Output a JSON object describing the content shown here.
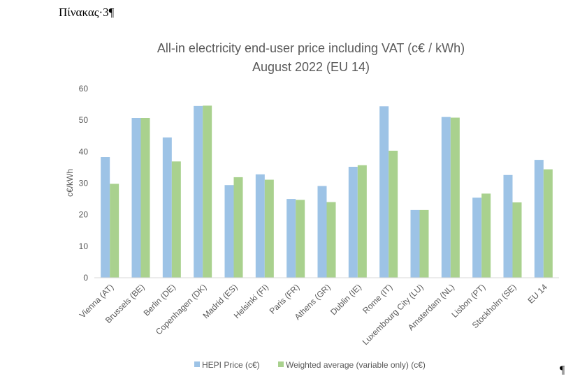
{
  "document": {
    "caption": "Πίνακας·3¶",
    "pilcrow": "¶"
  },
  "chart_data": {
    "type": "bar",
    "title": "All-in electricity end-user price including VAT (c€ / kWh)",
    "subtitle": "August 2022 (EU 14)",
    "xlabel": "",
    "ylabel": "c€/kWh",
    "ylim": [
      0,
      60
    ],
    "yticks": [
      0,
      10,
      20,
      30,
      40,
      50,
      60
    ],
    "grid": false,
    "legend_position": "bottom",
    "categories": [
      "Vienna (AT)",
      "Brussels (BE)",
      "Berlin (DE)",
      "Copenhagen (DK)",
      "Madrid (ES)",
      "Helsinki (FI)",
      "Paris (FR)",
      "Athens (GR)",
      "Dublin (IE)",
      "Rome (IT)",
      "Luxembourg City (LU)",
      "Amsterdam (NL)",
      "Lisbon (PT)",
      "Stockholm (SE)",
      "EU 14"
    ],
    "series": [
      {
        "name": "HEPI Price (c€)",
        "color": "#9dc3e6",
        "values": [
          38.3,
          50.7,
          44.5,
          54.5,
          29.4,
          32.8,
          25.0,
          29.1,
          35.2,
          54.4,
          21.5,
          51.0,
          25.4,
          32.6,
          37.4
        ]
      },
      {
        "name": "Weighted average (variable only) (c€)",
        "color": "#a9d18e",
        "values": [
          29.8,
          50.7,
          36.9,
          54.6,
          31.9,
          31.1,
          24.7,
          24.0,
          35.7,
          40.3,
          21.5,
          50.8,
          26.7,
          23.9,
          34.4
        ]
      }
    ]
  }
}
